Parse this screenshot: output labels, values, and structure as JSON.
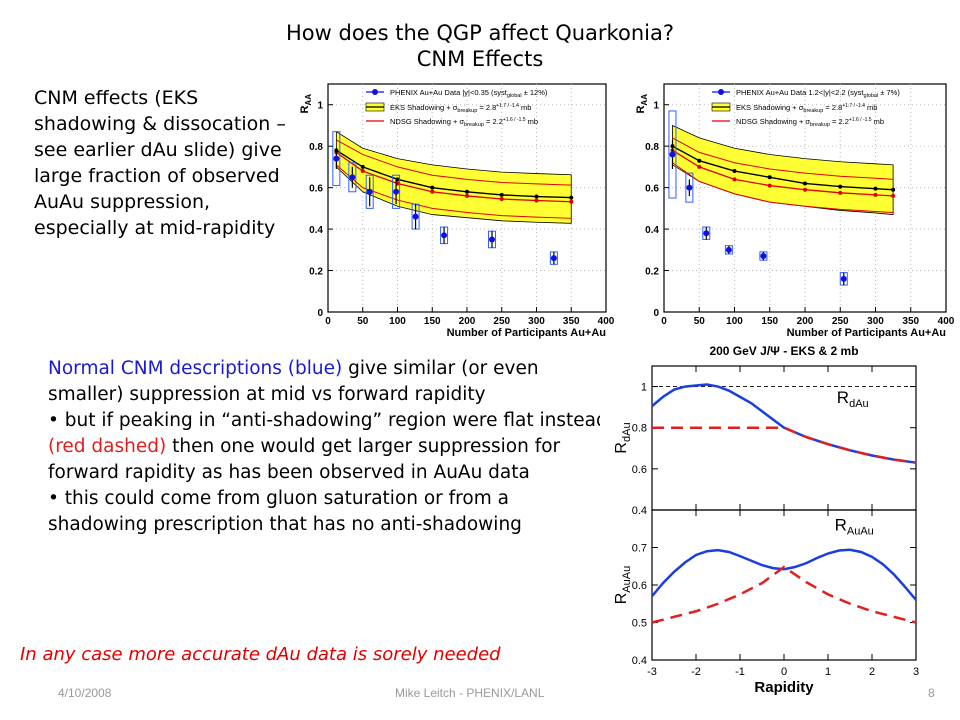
{
  "slide": {
    "title_line1": "How does the QGP affect Quarkonia?",
    "title_line2": "CNM Effects",
    "left_text": "CNM effects (EKS shadowing & dissocation – see earlier dAu slide) give large fraction of observed AuAu suppression, especially at mid-rapidity",
    "mid_text": {
      "p1_blue": "Normal CNM descriptions (blue)",
      "p1_rest": " give similar (or even smaller) suppression at mid vs forward rapidity",
      "p2_start": "• but if peaking in “anti-shadowing” region were flat instead ",
      "p2_red": "(red dashed)",
      "p2_end": " then one would get larger suppression for forward rapidity as has been observed in AuAu data",
      "p3": "• this could come from gluon saturation or from a shadowing prescription that has no anti-shadowing"
    },
    "conclusion": "In any case more accurate dAu data is sorely needed",
    "footer": {
      "date": "4/10/2008",
      "author": "Mike Leitch - PHENIX/LANL",
      "page": "8"
    }
  },
  "chart_data": [
    {
      "type": "scatter",
      "ylabel": "R",
      "ylabel_sub": "AA",
      "xlabel": "Number of Participants Au+Au",
      "xlim": [
        0,
        400
      ],
      "ylim": [
        0,
        1.1
      ],
      "xticks": [
        0,
        50,
        100,
        150,
        200,
        250,
        300,
        350,
        400
      ],
      "yticks": [
        0,
        0.2,
        0.4,
        0.6,
        0.8,
        1
      ],
      "legend": {
        "data_label": "PHENIX Au+Au Data |y|<0.35 (syst",
        "data_label_sub": "global",
        "data_label_end": " ± 12%)",
        "eks_label": "EKS Shadowing + σ",
        "eks_sub": "breakup",
        "eks_val": " = 2.8",
        "eks_err": "+1.7 / -1.4",
        "eks_unit": " mb",
        "ndsg_label": "NDSG Shadowing + σ",
        "ndsg_sub": "breakup",
        "ndsg_val": " = 2.2",
        "ndsg_err": "+1.6 / -1.5",
        "ndsg_unit": " mb"
      },
      "data": [
        {
          "x": 12,
          "y": 0.74,
          "err": 0.05,
          "sys": 0.13
        },
        {
          "x": 35,
          "y": 0.65,
          "err": 0.05,
          "sys": 0.07
        },
        {
          "x": 60,
          "y": 0.58,
          "err": 0.07,
          "sys": 0.08
        },
        {
          "x": 98,
          "y": 0.58,
          "err": 0.06,
          "sys": 0.08
        },
        {
          "x": 126,
          "y": 0.46,
          "err": 0.06,
          "sys": 0.06
        },
        {
          "x": 167,
          "y": 0.37,
          "err": 0.04,
          "sys": 0.04
        },
        {
          "x": 236,
          "y": 0.35,
          "err": 0.04,
          "sys": 0.04
        },
        {
          "x": 325,
          "y": 0.26,
          "err": 0.03,
          "sys": 0.03
        }
      ],
      "eks_curve": [
        [
          12,
          0.78
        ],
        [
          50,
          0.7
        ],
        [
          100,
          0.64
        ],
        [
          150,
          0.6
        ],
        [
          200,
          0.58
        ],
        [
          250,
          0.565
        ],
        [
          300,
          0.557
        ],
        [
          350,
          0.552
        ]
      ],
      "band_upper": [
        [
          12,
          0.87
        ],
        [
          50,
          0.79
        ],
        [
          100,
          0.74
        ],
        [
          150,
          0.71
        ],
        [
          200,
          0.69
        ],
        [
          250,
          0.675
        ],
        [
          300,
          0.668
        ],
        [
          350,
          0.662
        ]
      ],
      "band_lower": [
        [
          12,
          0.7
        ],
        [
          50,
          0.58
        ],
        [
          100,
          0.51
        ],
        [
          150,
          0.47
        ],
        [
          200,
          0.455
        ],
        [
          250,
          0.44
        ],
        [
          300,
          0.433
        ],
        [
          350,
          0.428
        ]
      ],
      "ndsg_upper": [
        [
          12,
          0.83
        ],
        [
          50,
          0.76
        ],
        [
          100,
          0.7
        ],
        [
          150,
          0.66
        ],
        [
          200,
          0.64
        ],
        [
          250,
          0.625
        ],
        [
          300,
          0.618
        ],
        [
          350,
          0.612
        ]
      ],
      "ndsg_center": [
        [
          12,
          0.77
        ],
        [
          50,
          0.68
        ],
        [
          100,
          0.62
        ],
        [
          150,
          0.58
        ],
        [
          200,
          0.56
        ],
        [
          250,
          0.545
        ],
        [
          300,
          0.538
        ],
        [
          350,
          0.532
        ]
      ],
      "ndsg_lower": [
        [
          12,
          0.71
        ],
        [
          50,
          0.6
        ],
        [
          100,
          0.54
        ],
        [
          150,
          0.5
        ],
        [
          200,
          0.48
        ],
        [
          250,
          0.465
        ],
        [
          300,
          0.458
        ],
        [
          350,
          0.452
        ]
      ]
    },
    {
      "type": "scatter",
      "ylabel": "R",
      "ylabel_sub": "AA",
      "xlabel": "Number of Participants Au+Au",
      "xlim": [
        0,
        400
      ],
      "ylim": [
        0,
        1.1
      ],
      "xticks": [
        0,
        50,
        100,
        150,
        200,
        250,
        300,
        350,
        400
      ],
      "yticks": [
        0,
        0.2,
        0.4,
        0.6,
        0.8,
        1
      ],
      "legend": {
        "data_label": "PHENIX Au+Au Data 1.2<|y|<2.2 (syst",
        "data_label_sub": "global",
        "data_label_end": " ± 7%)",
        "eks_label": "EKS Shadowing + σ",
        "eks_sub": "breakup",
        "eks_val": " = 2.8",
        "eks_err": "+1.7 / -1.4",
        "eks_unit": " mb",
        "ndsg_label": "NDSG Shadowing + σ",
        "ndsg_sub": "breakup",
        "ndsg_val": " = 2.2",
        "ndsg_err": "+1.6 / -1.5",
        "ndsg_unit": " mb"
      },
      "data": [
        {
          "x": 12,
          "y": 0.76,
          "err": 0.07,
          "sys": 0.21
        },
        {
          "x": 36,
          "y": 0.6,
          "err": 0.04,
          "sys": 0.07
        },
        {
          "x": 60,
          "y": 0.38,
          "err": 0.03,
          "sys": 0.03
        },
        {
          "x": 92,
          "y": 0.3,
          "err": 0.02,
          "sys": 0.02
        },
        {
          "x": 141,
          "y": 0.27,
          "err": 0.02,
          "sys": 0.02
        },
        {
          "x": 255,
          "y": 0.16,
          "err": 0.03,
          "sys": 0.03
        }
      ],
      "eks_curve": [
        [
          12,
          0.8
        ],
        [
          50,
          0.73
        ],
        [
          100,
          0.68
        ],
        [
          150,
          0.65
        ],
        [
          200,
          0.62
        ],
        [
          250,
          0.605
        ],
        [
          300,
          0.595
        ],
        [
          325,
          0.59
        ]
      ],
      "band_upper": [
        [
          12,
          0.9
        ],
        [
          50,
          0.84
        ],
        [
          100,
          0.79
        ],
        [
          150,
          0.76
        ],
        [
          200,
          0.74
        ],
        [
          250,
          0.725
        ],
        [
          300,
          0.715
        ],
        [
          325,
          0.71
        ]
      ],
      "band_lower": [
        [
          12,
          0.71
        ],
        [
          50,
          0.63
        ],
        [
          100,
          0.57
        ],
        [
          150,
          0.53
        ],
        [
          200,
          0.51
        ],
        [
          250,
          0.49
        ],
        [
          300,
          0.478
        ],
        [
          325,
          0.47
        ]
      ],
      "ndsg_upper": [
        [
          12,
          0.84
        ],
        [
          50,
          0.77
        ],
        [
          100,
          0.72
        ],
        [
          150,
          0.69
        ],
        [
          200,
          0.67
        ],
        [
          250,
          0.655
        ],
        [
          300,
          0.645
        ],
        [
          325,
          0.64
        ]
      ],
      "ndsg_center": [
        [
          12,
          0.78
        ],
        [
          50,
          0.7
        ],
        [
          100,
          0.64
        ],
        [
          150,
          0.61
        ],
        [
          200,
          0.59
        ],
        [
          250,
          0.575
        ],
        [
          300,
          0.565
        ],
        [
          325,
          0.56
        ]
      ],
      "ndsg_lower": [
        [
          12,
          0.72
        ],
        [
          50,
          0.63
        ],
        [
          100,
          0.57
        ],
        [
          150,
          0.53
        ],
        [
          200,
          0.51
        ],
        [
          250,
          0.495
        ],
        [
          300,
          0.485
        ],
        [
          325,
          0.48
        ]
      ]
    },
    {
      "type": "line",
      "title": "200 GeV J/Ψ - EKS & 2 mb",
      "xlabel": "Rapidity",
      "xlim": [
        -3,
        3
      ],
      "xticks": [
        -3,
        -2,
        -1,
        0,
        1,
        2,
        3
      ],
      "top": {
        "ylabel": "R",
        "ylabel_sub": "dAu",
        "inner_label": "R",
        "inner_label_sub": "dAu",
        "ylim": [
          0.4,
          1.1
        ],
        "yticks": [
          0.4,
          0.6,
          0.8,
          1
        ],
        "reference": 1,
        "series": [
          {
            "style": "blue-solid",
            "x": [
              -3,
              -2.75,
              -2.5,
              -2.25,
              -2,
              -1.75,
              -1.5,
              -1.25,
              -1,
              -0.75,
              -0.5,
              -0.25,
              0,
              0.5,
              1,
              1.5,
              2,
              2.5,
              3
            ],
            "y": [
              0.905,
              0.95,
              0.985,
              1.0,
              1.005,
              1.01,
              1.0,
              0.98,
              0.95,
              0.92,
              0.88,
              0.84,
              0.8,
              0.755,
              0.72,
              0.69,
              0.665,
              0.645,
              0.63
            ]
          },
          {
            "style": "red-dashed",
            "x": [
              -3,
              -2.5,
              -2,
              -1.5,
              -1,
              -0.5,
              0,
              0.5,
              1,
              1.5,
              2,
              2.5,
              3
            ],
            "y": [
              0.8,
              0.8,
              0.8,
              0.8,
              0.8,
              0.8,
              0.8,
              0.755,
              0.72,
              0.69,
              0.665,
              0.645,
              0.63
            ]
          }
        ]
      },
      "bottom": {
        "ylabel": "R",
        "ylabel_sub": "AuAu",
        "inner_label": "R",
        "inner_label_sub": "AuAu",
        "ylim": [
          0.4,
          0.8
        ],
        "yticks": [
          0.4,
          0.5,
          0.6,
          0.7
        ],
        "series": [
          {
            "style": "blue-solid",
            "x": [
              -3,
              -2.75,
              -2.5,
              -2.25,
              -2,
              -1.75,
              -1.5,
              -1.25,
              -1,
              -0.75,
              -0.5,
              -0.25,
              0,
              0.25,
              0.5,
              0.75,
              1,
              1.25,
              1.5,
              1.75,
              2,
              2.25,
              2.5,
              2.75,
              3
            ],
            "y": [
              0.57,
              0.605,
              0.635,
              0.66,
              0.68,
              0.69,
              0.693,
              0.688,
              0.677,
              0.665,
              0.653,
              0.645,
              0.642,
              0.648,
              0.658,
              0.672,
              0.684,
              0.692,
              0.694,
              0.688,
              0.675,
              0.655,
              0.628,
              0.595,
              0.56
            ]
          },
          {
            "style": "red-dashed",
            "x": [
              -3,
              -2.5,
              -2,
              -1.5,
              -1,
              -0.5,
              0,
              0.5,
              1,
              1.5,
              2,
              2.5,
              3
            ],
            "y": [
              0.5,
              0.515,
              0.53,
              0.55,
              0.575,
              0.605,
              0.648,
              0.608,
              0.575,
              0.55,
              0.53,
              0.515,
              0.5
            ]
          }
        ]
      }
    }
  ]
}
